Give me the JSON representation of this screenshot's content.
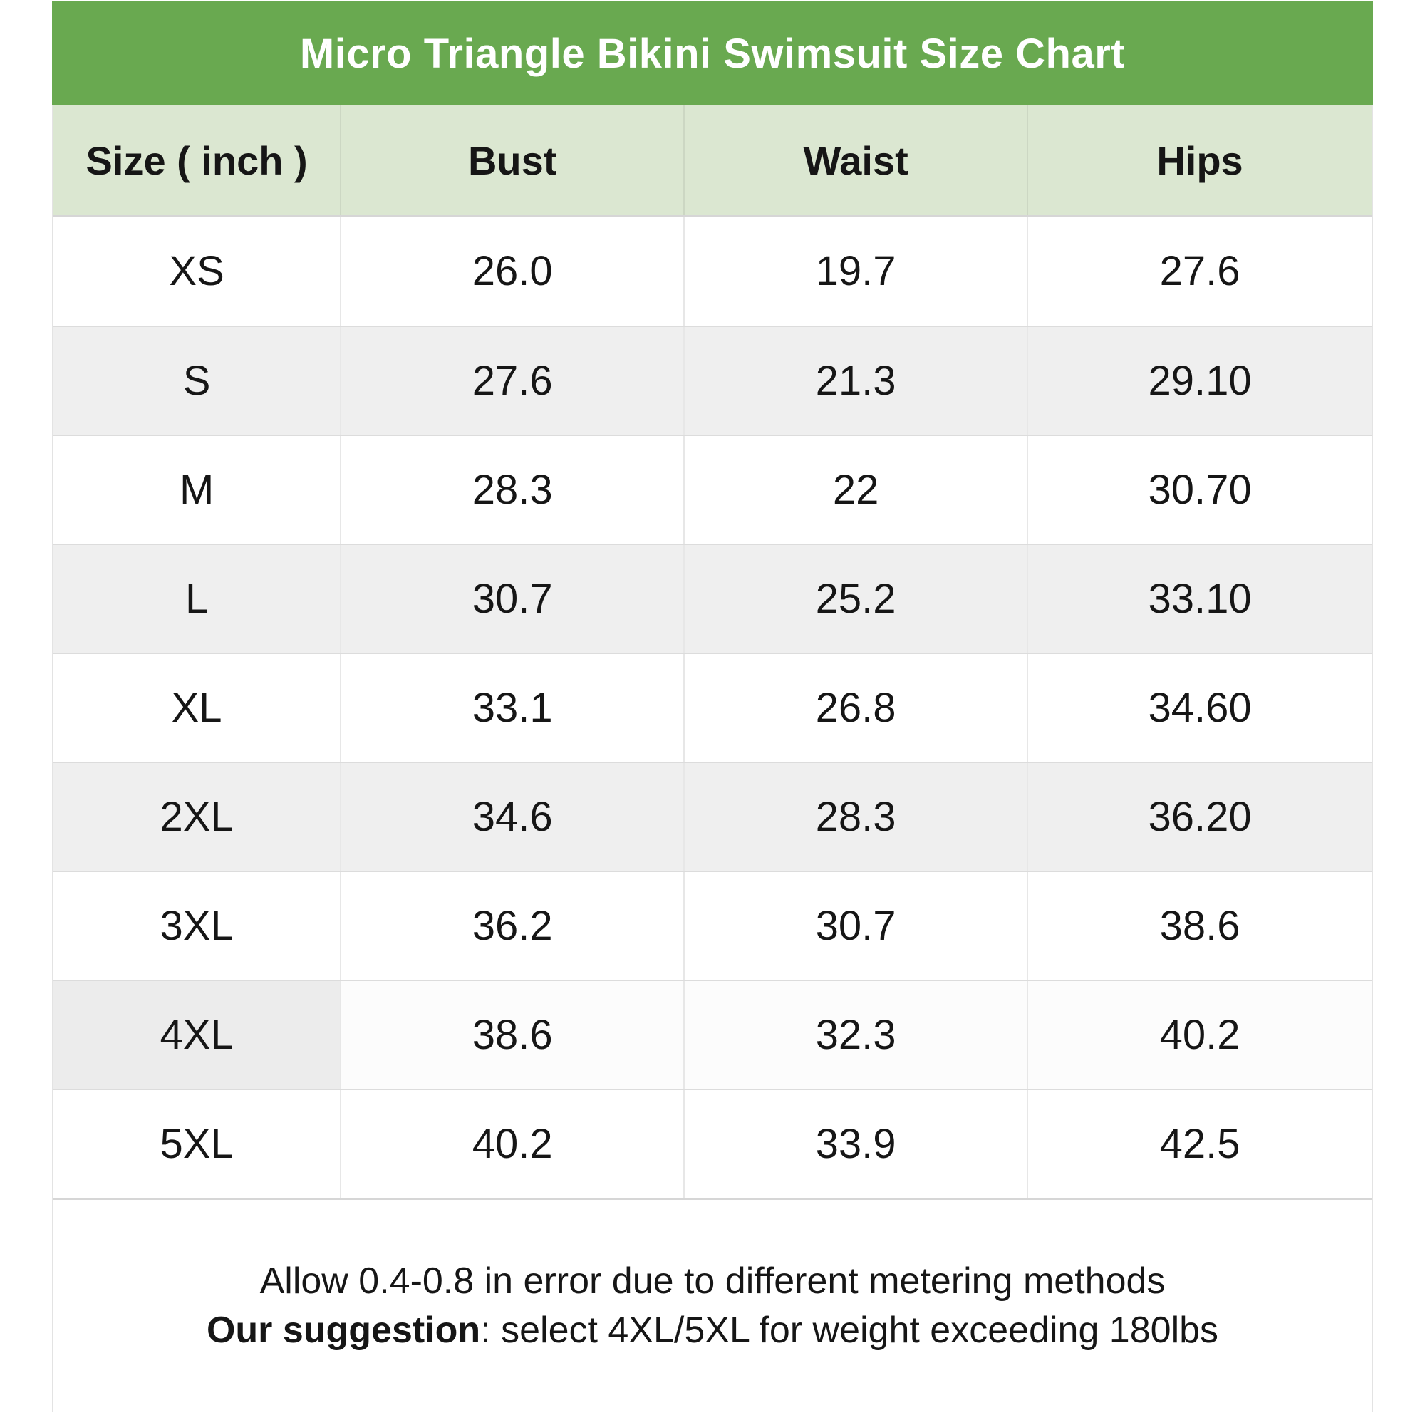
{
  "chart_data": {
    "type": "table",
    "title": "Micro Triangle Bikini Swimsuit Size Chart",
    "unit": "inch",
    "columns": [
      "Size ( inch )",
      "Bust",
      "Waist",
      "Hips"
    ],
    "rows": [
      [
        "XS",
        "26.0",
        "19.7",
        "27.6"
      ],
      [
        "S",
        "27.6",
        "21.3",
        "29.10"
      ],
      [
        "M",
        "28.3",
        "22",
        "30.70"
      ],
      [
        "L",
        "30.7",
        "25.2",
        "33.10"
      ],
      [
        "XL",
        "33.1",
        "26.8",
        "34.60"
      ],
      [
        "2XL",
        "34.6",
        "28.3",
        "36.20"
      ],
      [
        "3XL",
        "36.2",
        "30.7",
        "38.6"
      ],
      [
        "4XL",
        "38.6",
        "32.3",
        "40.2"
      ],
      [
        "5XL",
        "40.2",
        "33.9",
        "42.5"
      ]
    ],
    "notes": {
      "line1": "Allow 0.4-0.8 in error due to different metering methods",
      "line2_bold": "Our suggestion",
      "line2_rest": ": select 4XL/5XL for weight exceeding 180lbs"
    },
    "layout_hints": {
      "legend": "none",
      "grid": "on",
      "striped_rows": [
        "S",
        "L",
        "2XL"
      ],
      "mixed_row": "4XL"
    },
    "colors": {
      "title_bg": "#69a950",
      "title_text": "#ffffff",
      "header_bg": "#dbe7d1",
      "stripe_bg": "#efefef",
      "text": "#161616"
    }
  }
}
